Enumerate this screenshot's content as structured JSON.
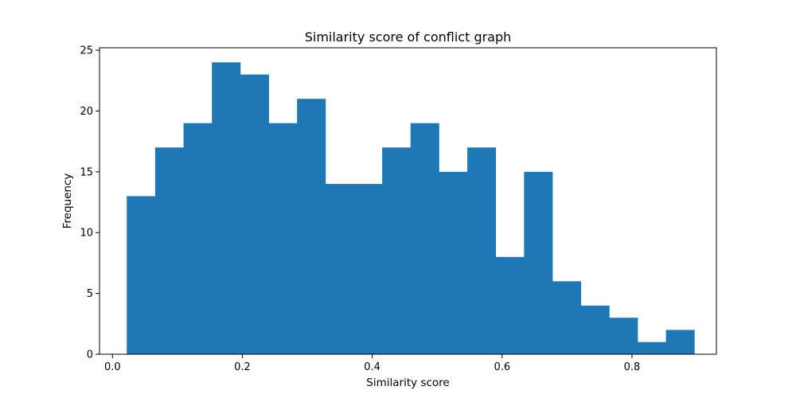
{
  "chart_data": {
    "type": "bar",
    "subtype": "histogram",
    "title": "Similarity score of conflict graph",
    "xlabel": "Similarity score",
    "ylabel": "Frequency",
    "xlim": [
      -0.02,
      0.93
    ],
    "ylim": [
      0,
      25.2
    ],
    "xticks": [
      "0.0",
      "0.2",
      "0.4",
      "0.6",
      "0.8"
    ],
    "yticks": [
      "0",
      "5",
      "10",
      "15",
      "20",
      "25"
    ],
    "bin_edges": [
      0.022,
      0.0657,
      0.1094,
      0.1531,
      0.1968,
      0.2405,
      0.2842,
      0.3279,
      0.3716,
      0.4153,
      0.459,
      0.5027,
      0.5464,
      0.5901,
      0.6338,
      0.6775,
      0.7212,
      0.7649,
      0.8086,
      0.8523,
      0.896
    ],
    "values": [
      13,
      17,
      19,
      24,
      23,
      19,
      21,
      14,
      14,
      17,
      19,
      15,
      17,
      8,
      15,
      6,
      4,
      3,
      1,
      2
    ],
    "grid": false,
    "legend": "none",
    "bar_color": "#1f77b4"
  }
}
